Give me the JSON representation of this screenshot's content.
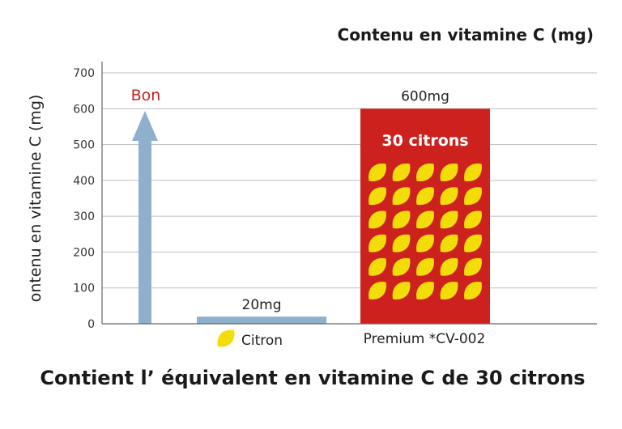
{
  "chart_data": {
    "type": "bar",
    "title": "Contenu en vitamine C (mg)",
    "subtitle": "Contient l’ équivalent en vitamine C de 30 citrons",
    "ylabel": "ontenu en vitamine C (mg)",
    "ylim": [
      0,
      700
    ],
    "yticks": [
      "0",
      "100",
      "200",
      "300",
      "400",
      "500",
      "600",
      "700"
    ],
    "grid": true,
    "categories": [
      "Citron",
      "Premium *CV-002"
    ],
    "values": [
      20,
      600
    ],
    "data_labels": [
      "20mg",
      "600mg"
    ],
    "arrow_label": "Bon",
    "bar_inner_label": "30 citrons",
    "lemon_grid": {
      "rows": 6,
      "cols": 5
    },
    "colors": {
      "citron_bar": "#8fb0cc",
      "premium_bar": "#cc211d",
      "arrow": "#8fb0cc",
      "arrow_label": "#cc211d",
      "lemon": "#f2dd0a",
      "grid": "#bdbdbd",
      "axis": "#666666"
    }
  }
}
